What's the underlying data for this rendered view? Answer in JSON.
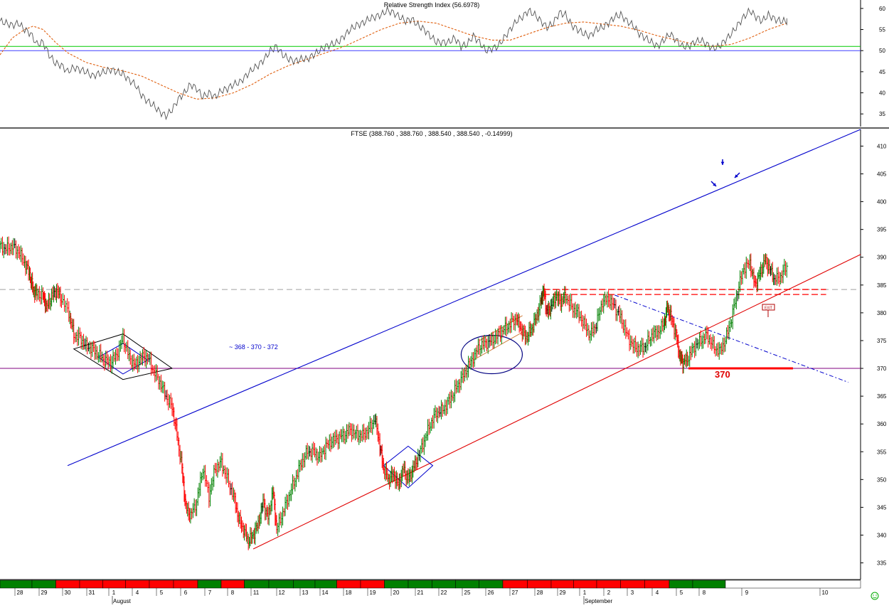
{
  "rsi_panel": {
    "title": "Relative Strength Index (56.6978)",
    "yticks": [
      35,
      40,
      45,
      50,
      55,
      60
    ]
  },
  "price_panel": {
    "title": "FTSE (388.760 , 388.760 , 388.540 , 388.540 , -0.14999)",
    "yticks": [
      335,
      340,
      345,
      350,
      355,
      360,
      365,
      370,
      375,
      380,
      385,
      390,
      395,
      400,
      405,
      410
    ],
    "annotation_target": "~ 368 - 370 - 372",
    "label_370": "370",
    "exit_label": "EXIT"
  },
  "timeline": {
    "day_labels": [
      "28",
      "29",
      "30",
      "31",
      "1",
      "4",
      "5",
      "6",
      "7",
      "8",
      "11",
      "12",
      "13",
      "14",
      "18",
      "19",
      "20",
      "21",
      "22",
      "25",
      "26",
      "27",
      "28",
      "29",
      "1",
      "2",
      "3",
      "4",
      "5",
      "8",
      "9",
      "10"
    ],
    "month_labels": [
      "August",
      "September"
    ]
  },
  "colors": {
    "up": "#008000",
    "down": "#ff0000",
    "neutral": "#000000",
    "channel_upper": "#0000cc",
    "channel_lower": "#e00000",
    "rsi_line": "#555555",
    "rsi_avg": "#e06010",
    "rsi_level_green": "#00cc00",
    "rsi_level_blue": "#4040ff",
    "horizontal_370": "#800080",
    "dashed_resistance": "#ff0000",
    "grey_dashed": "#a0a0a0"
  },
  "chart_data": {
    "type": "line",
    "series": [
      {
        "points": [
          [
            28.0,
            392
          ],
          [
            28.5,
            391.5
          ],
          [
            29.0,
            392
          ],
          [
            29.5,
            391
          ],
          [
            30.0,
            389
          ],
          [
            30.4,
            387
          ],
          [
            30.7,
            384
          ],
          [
            31.0,
            383.5
          ],
          [
            31.5,
            383
          ],
          [
            31.8,
            381
          ],
          [
            32.2,
            383
          ],
          [
            32.6,
            384
          ],
          [
            33.0,
            382.5
          ],
          [
            33.6,
            380
          ],
          [
            34.0,
            376
          ],
          [
            34.5,
            375.5
          ],
          [
            35.0,
            374
          ],
          [
            35.5,
            373.5
          ],
          [
            36.0,
            372.5
          ],
          [
            36.5,
            371.5
          ],
          [
            37.0,
            371
          ],
          [
            37.5,
            372.5
          ],
          [
            38.0,
            375.5
          ],
          [
            38.5,
            372
          ],
          [
            39.0,
            370.5
          ],
          [
            39.5,
            372
          ],
          [
            40.0,
            372
          ],
          [
            40.5,
            369.5
          ],
          [
            41.0,
            367.5
          ],
          [
            41.5,
            365
          ],
          [
            42.0,
            363
          ],
          [
            42.4,
            358
          ],
          [
            42.8,
            352
          ],
          [
            43.1,
            345
          ],
          [
            43.5,
            343.5
          ],
          [
            44.0,
            346
          ],
          [
            44.5,
            352
          ],
          [
            45.0,
            347
          ],
          [
            45.5,
            352
          ],
          [
            46.0,
            353
          ],
          [
            46.5,
            350
          ],
          [
            47.0,
            347
          ],
          [
            47.4,
            343
          ],
          [
            47.8,
            341
          ],
          [
            48.2,
            339
          ],
          [
            48.6,
            340
          ],
          [
            49.0,
            342
          ],
          [
            49.4,
            346
          ],
          [
            49.8,
            343
          ],
          [
            50.2,
            348
          ],
          [
            50.5,
            341
          ],
          [
            51.0,
            344
          ],
          [
            51.5,
            347
          ],
          [
            52.0,
            350
          ],
          [
            52.5,
            353
          ],
          [
            53.0,
            355
          ],
          [
            53.5,
            355
          ],
          [
            54.0,
            354
          ],
          [
            54.5,
            356
          ],
          [
            55.0,
            357
          ],
          [
            55.5,
            357.5
          ],
          [
            56.0,
            358
          ],
          [
            56.5,
            359
          ],
          [
            57.0,
            358
          ],
          [
            57.5,
            358
          ],
          [
            58.0,
            359
          ],
          [
            58.5,
            361
          ],
          [
            58.9,
            356
          ],
          [
            59.2,
            352
          ],
          [
            59.6,
            350
          ],
          [
            60.0,
            351
          ],
          [
            60.4,
            349
          ],
          [
            60.8,
            352
          ],
          [
            61.2,
            350
          ],
          [
            61.6,
            352
          ],
          [
            62.0,
            354
          ],
          [
            62.5,
            357
          ],
          [
            63.0,
            360
          ],
          [
            63.5,
            362
          ],
          [
            64.0,
            362.5
          ],
          [
            64.5,
            364
          ],
          [
            65.0,
            366
          ],
          [
            65.5,
            368
          ],
          [
            66.0,
            370
          ],
          [
            66.5,
            372
          ],
          [
            67.0,
            374
          ],
          [
            67.5,
            374.5
          ],
          [
            68.0,
            375
          ],
          [
            68.5,
            376
          ],
          [
            69.0,
            377
          ],
          [
            69.5,
            378
          ],
          [
            70.0,
            379
          ],
          [
            70.4,
            377
          ],
          [
            70.8,
            375.5
          ],
          [
            71.2,
            377
          ],
          [
            71.6,
            379
          ],
          [
            72.0,
            382
          ],
          [
            72.2,
            384
          ],
          [
            72.5,
            380
          ],
          [
            72.8,
            381
          ],
          [
            73.2,
            383
          ],
          [
            73.6,
            382
          ],
          [
            74.0,
            383
          ],
          [
            74.5,
            381
          ],
          [
            75.0,
            380
          ],
          [
            75.5,
            378
          ],
          [
            76.0,
            376
          ],
          [
            76.5,
            378
          ],
          [
            77.0,
            382
          ],
          [
            77.5,
            382.5
          ],
          [
            78.0,
            381
          ],
          [
            78.5,
            379
          ],
          [
            79.0,
            376
          ],
          [
            79.5,
            374
          ],
          [
            80.0,
            373.5
          ],
          [
            80.5,
            374
          ],
          [
            81.0,
            376
          ],
          [
            81.5,
            376.5
          ],
          [
            82.0,
            378
          ],
          [
            82.3,
            381
          ],
          [
            82.6,
            379
          ],
          [
            83.0,
            376
          ],
          [
            83.3,
            372
          ],
          [
            83.6,
            371
          ],
          [
            84.0,
            372
          ],
          [
            84.5,
            374
          ],
          [
            85.0,
            375
          ],
          [
            85.5,
            376
          ],
          [
            86.0,
            374
          ],
          [
            86.5,
            373
          ],
          [
            87.0,
            375
          ],
          [
            87.5,
            379
          ],
          [
            88.0,
            384
          ],
          [
            88.5,
            388
          ],
          [
            89.0,
            389
          ],
          [
            89.4,
            385
          ],
          [
            89.8,
            387
          ],
          [
            90.2,
            389.5
          ],
          [
            90.6,
            388
          ],
          [
            91.0,
            386
          ],
          [
            91.5,
            386.5
          ],
          [
            92.0,
            388.5
          ]
        ]
      }
    ],
    "ylim": [
      332,
      413
    ],
    "xlim": [
      28.0,
      98.0
    ],
    "rsi": {
      "line": [
        [
          28,
          57
        ],
        [
          28.5,
          56.5
        ],
        [
          29,
          56
        ],
        [
          29.5,
          56.5
        ],
        [
          30,
          55
        ],
        [
          30.5,
          54
        ],
        [
          31,
          51.5
        ],
        [
          31.5,
          52
        ],
        [
          32,
          49
        ],
        [
          32.5,
          47
        ],
        [
          33,
          46.5
        ],
        [
          33.5,
          45
        ],
        [
          34,
          46
        ],
        [
          34.5,
          45.5
        ],
        [
          35,
          45
        ],
        [
          35.5,
          44
        ],
        [
          36,
          44.5
        ],
        [
          36.5,
          45
        ],
        [
          37,
          45.5
        ],
        [
          37.5,
          45
        ],
        [
          38,
          44.5
        ],
        [
          38.5,
          43
        ],
        [
          39,
          42
        ],
        [
          39.5,
          39.5
        ],
        [
          40,
          38
        ],
        [
          40.5,
          37
        ],
        [
          41,
          35.5
        ],
        [
          41.5,
          34.5
        ],
        [
          42,
          36
        ],
        [
          42.5,
          38.5
        ],
        [
          43,
          40
        ],
        [
          43.5,
          42
        ],
        [
          44,
          41
        ],
        [
          44.5,
          39
        ],
        [
          45,
          40
        ],
        [
          45.5,
          39
        ],
        [
          46,
          40.5
        ],
        [
          46.5,
          41
        ],
        [
          47,
          42
        ],
        [
          47.5,
          42.5
        ],
        [
          48,
          44
        ],
        [
          48.5,
          45.5
        ],
        [
          49,
          46.5
        ],
        [
          49.5,
          48
        ],
        [
          50,
          50
        ],
        [
          50.5,
          51
        ],
        [
          51,
          49
        ],
        [
          51.5,
          48
        ],
        [
          52,
          47.5
        ],
        [
          52.5,
          48
        ],
        [
          53,
          48
        ],
        [
          53.5,
          49
        ],
        [
          54,
          50
        ],
        [
          54.5,
          51
        ],
        [
          55,
          51.5
        ],
        [
          55.5,
          52
        ],
        [
          56,
          53.5
        ],
        [
          56.5,
          55
        ],
        [
          57,
          56
        ],
        [
          57.5,
          56.5
        ],
        [
          58,
          57.5
        ],
        [
          58.5,
          58
        ],
        [
          59,
          58.5
        ],
        [
          59.5,
          59.5
        ],
        [
          60,
          59
        ],
        [
          60.5,
          58
        ],
        [
          61,
          57
        ],
        [
          61.5,
          57.5
        ],
        [
          62,
          56
        ],
        [
          62.5,
          55
        ],
        [
          63,
          53.5
        ],
        [
          63.5,
          52
        ],
        [
          64,
          52
        ],
        [
          64.5,
          52
        ],
        [
          65,
          53
        ],
        [
          65.5,
          51
        ],
        [
          66,
          51.5
        ],
        [
          66.5,
          53.5
        ],
        [
          67,
          52
        ],
        [
          67.5,
          50
        ],
        [
          68,
          50.5
        ],
        [
          68.5,
          51
        ],
        [
          69,
          53
        ],
        [
          69.5,
          55
        ],
        [
          70,
          57
        ],
        [
          70.5,
          58
        ],
        [
          71,
          59.5
        ],
        [
          71.5,
          58.5
        ],
        [
          72,
          57
        ],
        [
          72.5,
          55.5
        ],
        [
          73,
          56.5
        ],
        [
          73.5,
          59
        ],
        [
          74,
          58.5
        ],
        [
          74.5,
          56
        ],
        [
          75,
          55
        ],
        [
          75.5,
          54
        ],
        [
          76,
          53.5
        ],
        [
          76.5,
          55
        ],
        [
          77,
          55.5
        ],
        [
          77.5,
          56.5
        ],
        [
          78,
          58
        ],
        [
          78.5,
          58.5
        ],
        [
          79,
          57
        ],
        [
          79.5,
          56
        ],
        [
          80,
          54
        ],
        [
          80.5,
          53
        ],
        [
          81,
          52
        ],
        [
          81.5,
          51
        ],
        [
          82,
          52.5
        ],
        [
          82.5,
          54
        ],
        [
          83,
          52.5
        ],
        [
          83.5,
          51
        ],
        [
          84,
          51
        ],
        [
          84.5,
          52
        ],
        [
          85,
          52.5
        ],
        [
          85.5,
          51.5
        ],
        [
          86,
          50.5
        ],
        [
          86.5,
          51
        ],
        [
          87,
          52.5
        ],
        [
          87.5,
          54
        ],
        [
          88,
          56
        ],
        [
          88.5,
          58
        ],
        [
          89,
          59.5
        ],
        [
          89.5,
          58
        ],
        [
          90,
          57
        ],
        [
          90.5,
          58.5
        ],
        [
          91,
          57.5
        ],
        [
          91.5,
          57
        ],
        [
          92,
          57
        ]
      ],
      "average": [
        [
          28,
          49
        ],
        [
          29,
          53
        ],
        [
          30,
          55
        ],
        [
          30.7,
          55.8
        ],
        [
          31.5,
          55
        ],
        [
          32.5,
          52
        ],
        [
          33.5,
          49.5
        ],
        [
          35,
          47.2
        ],
        [
          36.5,
          46
        ],
        [
          38,
          45.2
        ],
        [
          39.5,
          44
        ],
        [
          41,
          42
        ],
        [
          42.5,
          40
        ],
        [
          44,
          38.5
        ],
        [
          45.5,
          38.8
        ],
        [
          47,
          40
        ],
        [
          48.5,
          42
        ],
        [
          50,
          44.5
        ],
        [
          51.5,
          46.5
        ],
        [
          53,
          48
        ],
        [
          54.5,
          49.5
        ],
        [
          56,
          51
        ],
        [
          57.5,
          53
        ],
        [
          59,
          55
        ],
        [
          60.5,
          56.5
        ],
        [
          62,
          57
        ],
        [
          63.5,
          56.5
        ],
        [
          65,
          55
        ],
        [
          66.5,
          53.5
        ],
        [
          68,
          52.5
        ],
        [
          69.5,
          52.5
        ],
        [
          71,
          54
        ],
        [
          72.5,
          55.5
        ],
        [
          74,
          56.5
        ],
        [
          75.5,
          56.8
        ],
        [
          77,
          56.3
        ],
        [
          78.5,
          55.8
        ],
        [
          80,
          54.8
        ],
        [
          81.5,
          53.5
        ],
        [
          83,
          52.5
        ],
        [
          84.5,
          51.5
        ],
        [
          86,
          51
        ],
        [
          87.5,
          51.5
        ],
        [
          89,
          53
        ],
        [
          90.5,
          55
        ],
        [
          92,
          56.5
        ]
      ],
      "levels": [
        51.0,
        50.5
      ],
      "ylim": [
        32,
        62
      ]
    },
    "trendlines": [
      {
        "from": [
          33.5,
          352.5
        ],
        "to": [
          98.0,
          413.0
        ]
      },
      {
        "from": [
          48.6,
          337.5
        ],
        "to": [
          98.0,
          390.5
        ]
      }
    ],
    "horizontal_levels": [
      370,
      384.2
    ],
    "resistance_band": [
      384.2,
      383.3
    ]
  }
}
